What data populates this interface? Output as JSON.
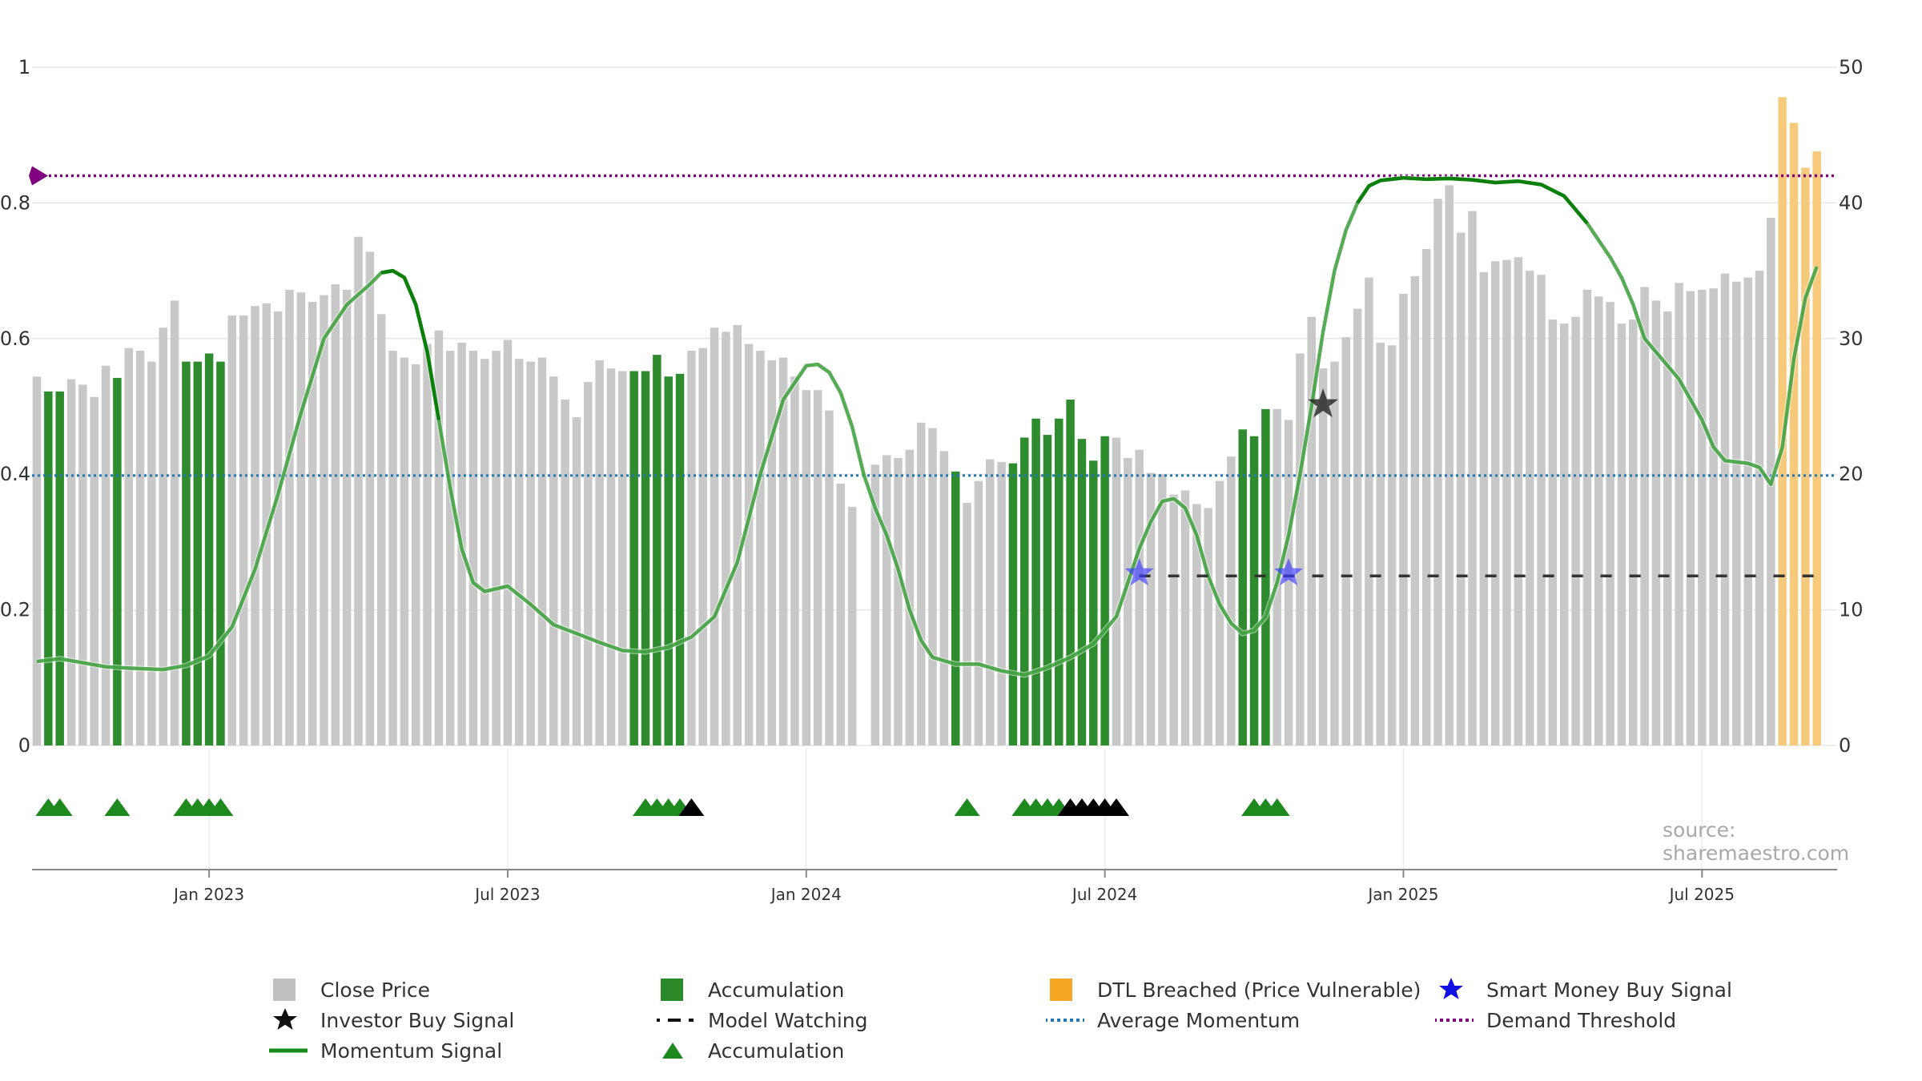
{
  "chart_data": {
    "type": "bar",
    "title": "",
    "credit": "source: sharemaestro.com",
    "x_axis": {
      "ticks": [
        "Jan 2023",
        "Jul 2023",
        "Jan 2024",
        "Jul 2024",
        "Jan 2025",
        "Jul 2025"
      ],
      "tick_weeks": [
        15,
        41,
        67,
        93,
        119,
        145
      ],
      "n_weeks": 156,
      "note": "x positions are week indices from the first bar"
    },
    "y_left": {
      "ticks": [
        "0",
        "0.2",
        "0.4",
        "0.6",
        "0.8",
        "1"
      ],
      "range": [
        0,
        1
      ]
    },
    "y_right": {
      "ticks": [
        "0",
        "10",
        "20",
        "30",
        "40",
        "50"
      ],
      "range": [
        0,
        50
      ]
    },
    "grid": true,
    "legend_position": "bottom",
    "colors": {
      "close_price": "#c8c8c8",
      "accumulation": "#2e8b2e",
      "dtl_breached": "#f7c97b",
      "momentum": "#1a8a1a",
      "average_momentum": "#1f77b4",
      "demand_threshold": "#800080",
      "smart_money": "#3a3aff",
      "investor": "#222222",
      "marker_green": "#1e8a1e",
      "marker_black": "#000000"
    },
    "close_price_bars": [
      {
        "type": "c",
        "value": 27.2
      },
      {
        "type": "a",
        "value": 26.1
      },
      {
        "type": "a",
        "value": 26.1
      },
      {
        "type": "c",
        "value": 27.0
      },
      {
        "type": "c",
        "value": 26.6
      },
      {
        "type": "c",
        "value": 25.7
      },
      {
        "type": "c",
        "value": 28.0
      },
      {
        "type": "a",
        "value": 27.1
      },
      {
        "type": "c",
        "value": 29.3
      },
      {
        "type": "c",
        "value": 29.1
      },
      {
        "type": "c",
        "value": 28.3
      },
      {
        "type": "c",
        "value": 30.8
      },
      {
        "type": "c",
        "value": 32.8
      },
      {
        "type": "a",
        "value": 28.3
      },
      {
        "type": "a",
        "value": 28.3
      },
      {
        "type": "a",
        "value": 28.9
      },
      {
        "type": "a",
        "value": 28.3
      },
      {
        "type": "c",
        "value": 31.7
      },
      {
        "type": "c",
        "value": 31.7
      },
      {
        "type": "c",
        "value": 32.4
      },
      {
        "type": "c",
        "value": 32.6
      },
      {
        "type": "c",
        "value": 32.0
      },
      {
        "type": "c",
        "value": 33.6
      },
      {
        "type": "c",
        "value": 33.4
      },
      {
        "type": "c",
        "value": 32.7
      },
      {
        "type": "c",
        "value": 33.2
      },
      {
        "type": "c",
        "value": 34.0
      },
      {
        "type": "c",
        "value": 33.6
      },
      {
        "type": "c",
        "value": 37.5
      },
      {
        "type": "c",
        "value": 36.4
      },
      {
        "type": "c",
        "value": 31.8
      },
      {
        "type": "c",
        "value": 29.1
      },
      {
        "type": "c",
        "value": 28.6
      },
      {
        "type": "c",
        "value": 28.1
      },
      {
        "type": "c",
        "value": 29.6
      },
      {
        "type": "c",
        "value": 30.6
      },
      {
        "type": "c",
        "value": 29.1
      },
      {
        "type": "c",
        "value": 29.7
      },
      {
        "type": "c",
        "value": 29.1
      },
      {
        "type": "c",
        "value": 28.5
      },
      {
        "type": "c",
        "value": 29.1
      },
      {
        "type": "c",
        "value": 29.9
      },
      {
        "type": "c",
        "value": 28.5
      },
      {
        "type": "c",
        "value": 28.3
      },
      {
        "type": "c",
        "value": 28.6
      },
      {
        "type": "c",
        "value": 27.2
      },
      {
        "type": "c",
        "value": 25.5
      },
      {
        "type": "c",
        "value": 24.2
      },
      {
        "type": "c",
        "value": 26.8
      },
      {
        "type": "c",
        "value": 28.4
      },
      {
        "type": "c",
        "value": 27.8
      },
      {
        "type": "c",
        "value": 27.6
      },
      {
        "type": "a",
        "value": 27.6
      },
      {
        "type": "a",
        "value": 27.6
      },
      {
        "type": "a",
        "value": 28.8
      },
      {
        "type": "a",
        "value": 27.2
      },
      {
        "type": "a",
        "value": 27.4
      },
      {
        "type": "c",
        "value": 29.1
      },
      {
        "type": "c",
        "value": 29.3
      },
      {
        "type": "c",
        "value": 30.8
      },
      {
        "type": "c",
        "value": 30.5
      },
      {
        "type": "c",
        "value": 31.0
      },
      {
        "type": "c",
        "value": 29.6
      },
      {
        "type": "c",
        "value": 29.1
      },
      {
        "type": "c",
        "value": 28.4
      },
      {
        "type": "c",
        "value": 28.6
      },
      {
        "type": "c",
        "value": 27.2
      },
      {
        "type": "c",
        "value": 26.2
      },
      {
        "type": "c",
        "value": 26.2
      },
      {
        "type": "c",
        "value": 24.7
      },
      {
        "type": "c",
        "value": 19.3
      },
      {
        "type": "c",
        "value": 17.6
      },
      {
        "type": "c",
        "value": 0
      },
      {
        "type": "c",
        "value": 20.7
      },
      {
        "type": "c",
        "value": 21.4
      },
      {
        "type": "c",
        "value": 21.2
      },
      {
        "type": "c",
        "value": 21.8
      },
      {
        "type": "c",
        "value": 23.8
      },
      {
        "type": "c",
        "value": 23.4
      },
      {
        "type": "c",
        "value": 21.7
      },
      {
        "type": "a",
        "value": 20.2
      },
      {
        "type": "c",
        "value": 17.9
      },
      {
        "type": "c",
        "value": 19.5
      },
      {
        "type": "c",
        "value": 21.1
      },
      {
        "type": "c",
        "value": 20.9
      },
      {
        "type": "a",
        "value": 20.8
      },
      {
        "type": "a",
        "value": 22.7
      },
      {
        "type": "a",
        "value": 24.1
      },
      {
        "type": "a",
        "value": 22.9
      },
      {
        "type": "a",
        "value": 24.1
      },
      {
        "type": "a",
        "value": 25.5
      },
      {
        "type": "a",
        "value": 22.6
      },
      {
        "type": "a",
        "value": 21.0
      },
      {
        "type": "a",
        "value": 22.8
      },
      {
        "type": "c",
        "value": 22.7
      },
      {
        "type": "c",
        "value": 21.2
      },
      {
        "type": "c",
        "value": 21.8
      },
      {
        "type": "c",
        "value": 20.1
      },
      {
        "type": "c",
        "value": 20.0
      },
      {
        "type": "c",
        "value": 18.5
      },
      {
        "type": "c",
        "value": 18.8
      },
      {
        "type": "c",
        "value": 17.8
      },
      {
        "type": "c",
        "value": 17.5
      },
      {
        "type": "c",
        "value": 19.5
      },
      {
        "type": "c",
        "value": 21.3
      },
      {
        "type": "a",
        "value": 23.3
      },
      {
        "type": "a",
        "value": 22.8
      },
      {
        "type": "a",
        "value": 24.8
      },
      {
        "type": "c",
        "value": 24.8
      },
      {
        "type": "c",
        "value": 24.0
      },
      {
        "type": "c",
        "value": 28.9
      },
      {
        "type": "c",
        "value": 31.6
      },
      {
        "type": "c",
        "value": 27.8
      },
      {
        "type": "c",
        "value": 28.3
      },
      {
        "type": "c",
        "value": 30.1
      },
      {
        "type": "c",
        "value": 32.2
      },
      {
        "type": "c",
        "value": 34.5
      },
      {
        "type": "c",
        "value": 29.7
      },
      {
        "type": "c",
        "value": 29.5
      },
      {
        "type": "c",
        "value": 33.3
      },
      {
        "type": "c",
        "value": 34.6
      },
      {
        "type": "c",
        "value": 36.6
      },
      {
        "type": "c",
        "value": 40.3
      },
      {
        "type": "c",
        "value": 41.3
      },
      {
        "type": "c",
        "value": 37.8
      },
      {
        "type": "c",
        "value": 39.4
      },
      {
        "type": "c",
        "value": 34.9
      },
      {
        "type": "c",
        "value": 35.7
      },
      {
        "type": "c",
        "value": 35.8
      },
      {
        "type": "c",
        "value": 36.0
      },
      {
        "type": "c",
        "value": 35.0
      },
      {
        "type": "c",
        "value": 34.7
      },
      {
        "type": "c",
        "value": 31.4
      },
      {
        "type": "c",
        "value": 31.1
      },
      {
        "type": "c",
        "value": 31.6
      },
      {
        "type": "c",
        "value": 33.6
      },
      {
        "type": "c",
        "value": 33.1
      },
      {
        "type": "c",
        "value": 32.7
      },
      {
        "type": "c",
        "value": 31.1
      },
      {
        "type": "c",
        "value": 31.4
      },
      {
        "type": "c",
        "value": 33.8
      },
      {
        "type": "c",
        "value": 32.8
      },
      {
        "type": "c",
        "value": 32.0
      },
      {
        "type": "c",
        "value": 34.1
      },
      {
        "type": "c",
        "value": 33.5
      },
      {
        "type": "c",
        "value": 33.6
      },
      {
        "type": "c",
        "value": 33.7
      },
      {
        "type": "c",
        "value": 34.8
      },
      {
        "type": "c",
        "value": 34.2
      },
      {
        "type": "c",
        "value": 34.5
      },
      {
        "type": "c",
        "value": 35.0
      },
      {
        "type": "c",
        "value": 38.9
      },
      {
        "type": "d",
        "value": 47.8
      },
      {
        "type": "d",
        "value": 45.9
      },
      {
        "type": "d",
        "value": 42.6
      },
      {
        "type": "d",
        "value": 43.8
      }
    ],
    "momentum_signal": [
      [
        0,
        0.124
      ],
      [
        2,
        0.128
      ],
      [
        4,
        0.122
      ],
      [
        6,
        0.116
      ],
      [
        8,
        0.114
      ],
      [
        11,
        0.112
      ],
      [
        13,
        0.118
      ],
      [
        15,
        0.132
      ],
      [
        17,
        0.175
      ],
      [
        19,
        0.26
      ],
      [
        21,
        0.37
      ],
      [
        23,
        0.49
      ],
      [
        25,
        0.6
      ],
      [
        27,
        0.65
      ],
      [
        29,
        0.68
      ],
      [
        30,
        0.697
      ],
      [
        31,
        0.7
      ],
      [
        32,
        0.69
      ],
      [
        33,
        0.65
      ],
      [
        34,
        0.58
      ],
      [
        35,
        0.48
      ],
      [
        36,
        0.38
      ],
      [
        37,
        0.29
      ],
      [
        38,
        0.24
      ],
      [
        39,
        0.227
      ],
      [
        41,
        0.235
      ],
      [
        43,
        0.208
      ],
      [
        45,
        0.178
      ],
      [
        47,
        0.165
      ],
      [
        49,
        0.152
      ],
      [
        51,
        0.14
      ],
      [
        53,
        0.138
      ],
      [
        55,
        0.145
      ],
      [
        57,
        0.16
      ],
      [
        59,
        0.19
      ],
      [
        61,
        0.27
      ],
      [
        63,
        0.4
      ],
      [
        65,
        0.51
      ],
      [
        67,
        0.56
      ],
      [
        68,
        0.562
      ],
      [
        69,
        0.55
      ],
      [
        70,
        0.52
      ],
      [
        71,
        0.47
      ],
      [
        72,
        0.4
      ],
      [
        73,
        0.35
      ],
      [
        74,
        0.31
      ],
      [
        75,
        0.26
      ],
      [
        76,
        0.2
      ],
      [
        77,
        0.155
      ],
      [
        78,
        0.13
      ],
      [
        80,
        0.12
      ],
      [
        82,
        0.12
      ],
      [
        84,
        0.11
      ],
      [
        86,
        0.104
      ],
      [
        88,
        0.115
      ],
      [
        90,
        0.13
      ],
      [
        92,
        0.15
      ],
      [
        94,
        0.19
      ],
      [
        95,
        0.24
      ],
      [
        96,
        0.29
      ],
      [
        97,
        0.33
      ],
      [
        98,
        0.36
      ],
      [
        99,
        0.364
      ],
      [
        100,
        0.35
      ],
      [
        101,
        0.31
      ],
      [
        102,
        0.25
      ],
      [
        103,
        0.208
      ],
      [
        104,
        0.18
      ],
      [
        105,
        0.165
      ],
      [
        106,
        0.17
      ],
      [
        107,
        0.19
      ],
      [
        108,
        0.24
      ],
      [
        109,
        0.31
      ],
      [
        110,
        0.4
      ],
      [
        111,
        0.5
      ],
      [
        112,
        0.61
      ],
      [
        113,
        0.7
      ],
      [
        114,
        0.76
      ],
      [
        115,
        0.8
      ],
      [
        116,
        0.825
      ],
      [
        117,
        0.833
      ],
      [
        119,
        0.837
      ],
      [
        121,
        0.835
      ],
      [
        123,
        0.836
      ],
      [
        125,
        0.834
      ],
      [
        127,
        0.83
      ],
      [
        129,
        0.832
      ],
      [
        131,
        0.827
      ],
      [
        133,
        0.81
      ],
      [
        135,
        0.77
      ],
      [
        137,
        0.72
      ],
      [
        138,
        0.69
      ],
      [
        139,
        0.65
      ],
      [
        140,
        0.6
      ],
      [
        141,
        0.58
      ],
      [
        142,
        0.56
      ],
      [
        143,
        0.54
      ],
      [
        144,
        0.51
      ],
      [
        145,
        0.48
      ],
      [
        146,
        0.44
      ],
      [
        147,
        0.42
      ],
      [
        149,
        0.416
      ],
      [
        150,
        0.41
      ],
      [
        151,
        0.385
      ],
      [
        152,
        0.44
      ],
      [
        153,
        0.57
      ],
      [
        154,
        0.66
      ],
      [
        155,
        0.706
      ]
    ],
    "momentum_dark_segments": [
      [
        30,
        35
      ],
      [
        115,
        136
      ]
    ],
    "average_momentum": 0.398,
    "demand_threshold": 0.84,
    "model_watching": {
      "y": 0.25,
      "from_week": 96,
      "to_week": 155
    },
    "smart_money_buy_signals": [
      {
        "week": 96,
        "y": 0.254
      },
      {
        "week": 109,
        "y": 0.254
      }
    ],
    "investor_buy_signals": [
      {
        "week": 112,
        "y": 0.503
      }
    ],
    "accumulation_markers": [
      {
        "week": 1,
        "color": "green"
      },
      {
        "week": 2,
        "color": "green"
      },
      {
        "week": 7,
        "color": "green"
      },
      {
        "week": 13,
        "color": "green"
      },
      {
        "week": 14,
        "color": "green"
      },
      {
        "week": 15,
        "color": "green"
      },
      {
        "week": 16,
        "color": "green"
      },
      {
        "week": 53,
        "color": "green"
      },
      {
        "week": 54,
        "color": "green"
      },
      {
        "week": 55,
        "color": "green"
      },
      {
        "week": 56,
        "color": "green"
      },
      {
        "week": 57,
        "color": "black"
      },
      {
        "week": 81,
        "color": "green"
      },
      {
        "week": 86,
        "color": "green"
      },
      {
        "week": 87,
        "color": "green"
      },
      {
        "week": 88,
        "color": "green"
      },
      {
        "week": 89,
        "color": "green"
      },
      {
        "week": 90,
        "color": "black"
      },
      {
        "week": 91,
        "color": "black"
      },
      {
        "week": 92,
        "color": "black"
      },
      {
        "week": 93,
        "color": "black"
      },
      {
        "week": 94,
        "color": "black"
      },
      {
        "week": 106,
        "color": "green"
      },
      {
        "week": 107,
        "color": "green"
      },
      {
        "week": 108,
        "color": "green"
      }
    ],
    "legend": [
      {
        "label": "Close Price",
        "symbol": "square-grey"
      },
      {
        "label": "Investor Buy Signal",
        "symbol": "star-black"
      },
      {
        "label": "Momentum Signal",
        "symbol": "line-green"
      },
      {
        "label": "Accumulation",
        "symbol": "square-green"
      },
      {
        "label": "Model Watching",
        "symbol": "dash-black"
      },
      {
        "label": "Accumulation",
        "symbol": "triangle-green"
      },
      {
        "label": "DTL Breached (Price Vulnerable)",
        "symbol": "square-orange"
      },
      {
        "label": "Average Momentum",
        "symbol": "dotted-blue"
      },
      {
        "label": "Smart Money Buy Signal",
        "symbol": "star-blue"
      },
      {
        "label": "Demand Threshold",
        "symbol": "dotted-purple"
      }
    ]
  }
}
